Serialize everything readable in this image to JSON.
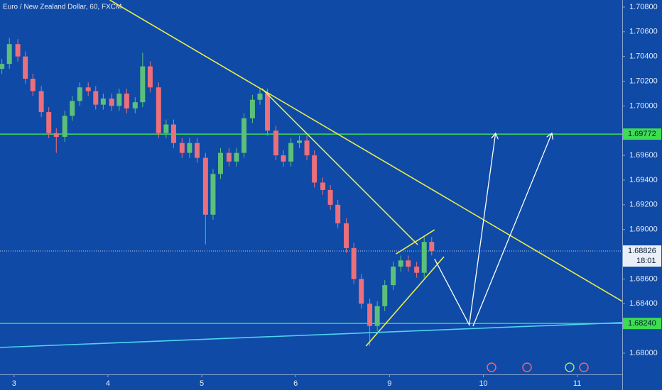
{
  "chart_data": {
    "type": "candlestick",
    "title": "Euro / New Zealand Dollar, 60, FXCM",
    "x": [
      -0.13,
      -0.05,
      0.04,
      0.12,
      0.2,
      0.29,
      0.37,
      0.45,
      0.54,
      0.62,
      0.7,
      0.79,
      0.87,
      0.95,
      1.04,
      1.12,
      1.2,
      1.29,
      1.37,
      1.45,
      1.54,
      1.62,
      1.7,
      1.79,
      1.87,
      1.95,
      2.04,
      2.12,
      2.2,
      2.29,
      2.37,
      2.45,
      2.54,
      2.62,
      2.7,
      2.79,
      2.87,
      2.95,
      3.04,
      3.12,
      3.2,
      3.29,
      3.37,
      3.45,
      3.54,
      3.62,
      3.7,
      3.79,
      3.87,
      3.95,
      4.04,
      4.12,
      4.2,
      4.29,
      4.37,
      4.45
    ],
    "open": [
      1.703,
      1.7034,
      1.705,
      1.704,
      1.7022,
      1.7012,
      1.6995,
      1.6978,
      1.6975,
      1.6992,
      1.7004,
      1.7015,
      1.7012,
      1.7001,
      1.7006,
      1.7,
      1.701,
      1.6998,
      1.7003,
      1.7032,
      1.7015,
      1.6978,
      1.6985,
      1.697,
      1.6962,
      1.697,
      1.6958,
      1.6912,
      1.6945,
      1.6962,
      1.6955,
      1.6962,
      1.699,
      1.7005,
      1.701,
      1.698,
      1.696,
      1.6955,
      1.697,
      1.6972,
      1.696,
      1.6938,
      1.6932,
      1.692,
      1.6905,
      1.6885,
      1.686,
      1.684,
      1.6822,
      1.6838,
      1.6855,
      1.687,
      1.6875,
      1.687,
      1.6865,
      1.689
    ],
    "high": [
      1.7038,
      1.7055,
      1.7054,
      1.7044,
      1.7026,
      1.7016,
      1.6999,
      1.6982,
      1.6996,
      1.7008,
      1.7019,
      1.7019,
      1.7016,
      1.701,
      1.701,
      1.7014,
      1.7014,
      1.7007,
      1.7043,
      1.7036,
      1.7019,
      1.6989,
      1.6989,
      1.6974,
      1.6974,
      1.6974,
      1.6962,
      1.6949,
      1.6966,
      1.6966,
      1.6966,
      1.6994,
      1.7009,
      1.7014,
      1.7014,
      1.6984,
      1.6964,
      1.6974,
      1.6976,
      1.6976,
      1.6964,
      1.6942,
      1.6936,
      1.6924,
      1.6909,
      1.6889,
      1.6864,
      1.6844,
      1.6842,
      1.6859,
      1.6874,
      1.6879,
      1.6879,
      1.6874,
      1.6894,
      1.6894
    ],
    "low": [
      1.7026,
      1.703,
      1.7036,
      1.7018,
      1.7008,
      1.6991,
      1.6974,
      1.6962,
      1.6971,
      1.6988,
      1.7,
      1.7008,
      1.6997,
      1.6997,
      1.6996,
      1.6996,
      1.6994,
      1.6994,
      1.6999,
      1.7011,
      1.6974,
      1.6974,
      1.6966,
      1.6958,
      1.6958,
      1.6954,
      1.6888,
      1.6908,
      1.6941,
      1.6951,
      1.6951,
      1.6958,
      1.6986,
      1.7001,
      1.6976,
      1.6956,
      1.6951,
      1.6951,
      1.6966,
      1.6956,
      1.6934,
      1.6928,
      1.6916,
      1.6901,
      1.6881,
      1.6856,
      1.6836,
      1.6806,
      1.6818,
      1.6834,
      1.6851,
      1.6866,
      1.6866,
      1.6861,
      1.6861,
      1.6879
    ],
    "close": [
      1.7034,
      1.705,
      1.704,
      1.7022,
      1.7012,
      1.6995,
      1.6978,
      1.6975,
      1.6992,
      1.7004,
      1.7015,
      1.7012,
      1.7001,
      1.7006,
      1.7,
      1.701,
      1.6998,
      1.7003,
      1.7032,
      1.7015,
      1.6978,
      1.6985,
      1.697,
      1.6962,
      1.697,
      1.6958,
      1.6912,
      1.6945,
      1.6962,
      1.6955,
      1.6962,
      1.699,
      1.7005,
      1.701,
      1.698,
      1.696,
      1.6955,
      1.697,
      1.6972,
      1.696,
      1.6938,
      1.6932,
      1.692,
      1.6905,
      1.6885,
      1.686,
      1.684,
      1.6822,
      1.6838,
      1.6855,
      1.687,
      1.6875,
      1.687,
      1.6865,
      1.689,
      1.68826
    ],
    "up_color": "#5cc07a",
    "down_color": "#ec6f7c",
    "xlim": [
      -0.15,
      6.48
    ],
    "ylim": [
      1.67828,
      1.70857
    ],
    "xticks": [
      {
        "value": 0,
        "label": "3"
      },
      {
        "value": 1,
        "label": "4"
      },
      {
        "value": 2,
        "label": "5"
      },
      {
        "value": 3,
        "label": "6"
      },
      {
        "value": 4,
        "label": "9"
      },
      {
        "value": 5,
        "label": "10"
      },
      {
        "value": 6,
        "label": "11"
      }
    ],
    "yticks": [
      {
        "value": 1.68,
        "label": "1.68000"
      },
      {
        "value": 1.684,
        "label": "1.68400"
      },
      {
        "value": 1.686,
        "label": "1.68600"
      },
      {
        "value": 1.69,
        "label": "1.69000"
      },
      {
        "value": 1.692,
        "label": "1.69200"
      },
      {
        "value": 1.694,
        "label": "1.69400"
      },
      {
        "value": 1.696,
        "label": "1.69600"
      },
      {
        "value": 1.7,
        "label": "1.70000"
      },
      {
        "value": 1.702,
        "label": "1.70200"
      },
      {
        "value": 1.704,
        "label": "1.70400"
      },
      {
        "value": 1.706,
        "label": "1.70600"
      },
      {
        "value": 1.708,
        "label": "1.70800"
      }
    ],
    "levels": [
      {
        "value": 1.69772,
        "color": "#3ddc52"
      },
      {
        "value": {
          "value": 1.6824,
          "label": "1.68240"
        },
        "color": "#3ddc52"
      }
    ],
    "current_price": {
      "value": 1.68826,
      "countdown": "18:01"
    },
    "trendlines": [
      {
        "color": "#e8ec4a",
        "x": [
          1.02,
          6.48
        ],
        "y": [
          1.70857,
          1.68419
        ]
      },
      {
        "color": "#e8ec4a",
        "x": [
          2.64,
          4.3
        ],
        "y": [
          1.7014,
          1.68878
        ]
      },
      {
        "color": "#e8ec4a",
        "x": [
          3.75,
          4.58
        ],
        "y": [
          1.68057,
          1.6878
        ]
      },
      {
        "color": "#e8ec4a",
        "x": [
          4.07,
          4.48
        ],
        "y": [
          1.68803,
          1.68998
        ]
      },
      {
        "color": "#4fd3f0",
        "x": [
          -0.15,
          6.48
        ],
        "y": [
          1.68046,
          1.68247
        ]
      },
      {
        "color": "#ffffff",
        "arrow": true,
        "x": [
          4.48,
          4.85,
          5.13
        ],
        "y": [
          1.68763,
          1.68229,
          1.69779
        ]
      },
      {
        "color": "#ffffff",
        "arrow": true,
        "x": [
          4.89,
          5.73
        ],
        "y": [
          1.68218,
          1.69779
        ]
      }
    ]
  }
}
